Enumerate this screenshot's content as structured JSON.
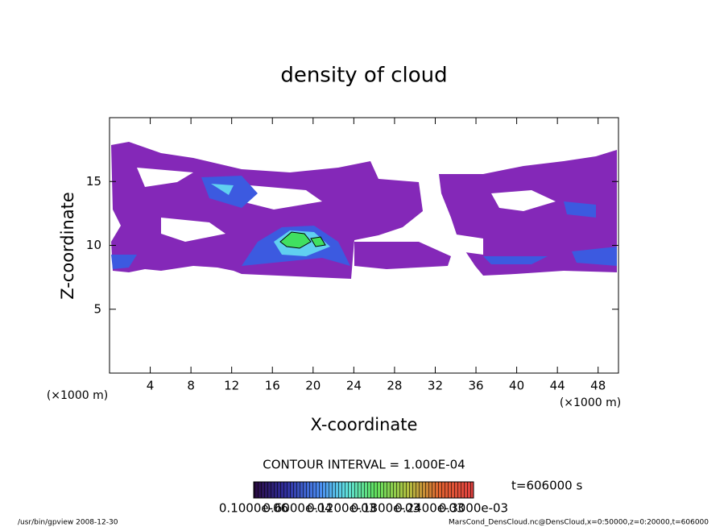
{
  "chart_data": {
    "type": "contour",
    "title": "density of cloud",
    "x_label": "X-coordinate",
    "y_label": "Z-coordinate",
    "x_unit": "(×1000 m)",
    "y_unit": "(×1000 m)",
    "xlim": [
      0,
      50
    ],
    "ylim": [
      0,
      20
    ],
    "xticks": [
      4,
      8,
      12,
      16,
      20,
      24,
      28,
      32,
      36,
      40,
      44,
      48
    ],
    "yticks": [
      5,
      10,
      15
    ],
    "contour_interval": "CONTOUR INTERVAL = 1.000E-04",
    "time": "t=606000 s",
    "colorbar_labels": [
      "0.1000e-06",
      "0.6000e-04",
      "0.1200e-03",
      "0.1800e-03",
      "0.2400e-03",
      "0.3000e-03"
    ],
    "footer_left": "/usr/bin/gpview  2008-12-30",
    "footer_right": "MarsCond_DensCloud.nc@DensCloud,x=0:50000,z=0:20000,t=606000"
  }
}
